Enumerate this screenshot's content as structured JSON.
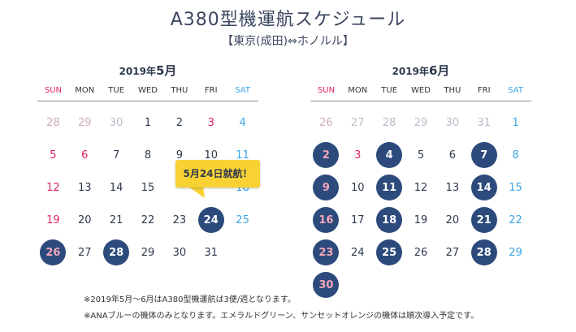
{
  "header": {
    "title": "A380型機運航スケジュール",
    "subtitle": "【東京(成田)⇔ホノルル】"
  },
  "weekdays": [
    "SUN",
    "MON",
    "TUE",
    "WED",
    "THU",
    "FRI",
    "SAT"
  ],
  "calendars": [
    {
      "year_label": "2019年",
      "month_label": "5月",
      "weeks": [
        [
          {
            "d": "28",
            "t": "other"
          },
          {
            "d": "29",
            "t": "other"
          },
          {
            "d": "30",
            "t": "other-wk"
          },
          {
            "d": "1",
            "t": "wk"
          },
          {
            "d": "2",
            "t": "wk"
          },
          {
            "d": "3",
            "t": "hol"
          },
          {
            "d": "4",
            "t": "sat"
          }
        ],
        [
          {
            "d": "5",
            "t": "sun"
          },
          {
            "d": "6",
            "t": "hol"
          },
          {
            "d": "7",
            "t": "wk"
          },
          {
            "d": "8",
            "t": "wk"
          },
          {
            "d": "9",
            "t": "wk"
          },
          {
            "d": "10",
            "t": "wk"
          },
          {
            "d": "11",
            "t": "sat"
          }
        ],
        [
          {
            "d": "12",
            "t": "sun"
          },
          {
            "d": "13",
            "t": "wk"
          },
          {
            "d": "14",
            "t": "wk"
          },
          {
            "d": "15",
            "t": "wk"
          },
          {
            "d": "",
            "t": "wk"
          },
          {
            "d": "",
            "t": "wk"
          },
          {
            "d": "18",
            "t": "sat"
          }
        ],
        [
          {
            "d": "19",
            "t": "sun"
          },
          {
            "d": "20",
            "t": "wk"
          },
          {
            "d": "21",
            "t": "wk"
          },
          {
            "d": "22",
            "t": "wk"
          },
          {
            "d": "23",
            "t": "wk"
          },
          {
            "d": "24",
            "t": "flight"
          },
          {
            "d": "25",
            "t": "sat"
          }
        ],
        [
          {
            "d": "26",
            "t": "flight-sun"
          },
          {
            "d": "27",
            "t": "wk"
          },
          {
            "d": "28",
            "t": "flight"
          },
          {
            "d": "29",
            "t": "wk"
          },
          {
            "d": "30",
            "t": "wk"
          },
          {
            "d": "31",
            "t": "wk"
          },
          {
            "d": "",
            "t": "wk"
          }
        ]
      ]
    },
    {
      "year_label": "2019年",
      "month_label": "6月",
      "weeks": [
        [
          {
            "d": "26",
            "t": "other"
          },
          {
            "d": "27",
            "t": "other-wk"
          },
          {
            "d": "28",
            "t": "other-wk"
          },
          {
            "d": "29",
            "t": "other-wk"
          },
          {
            "d": "30",
            "t": "other-wk"
          },
          {
            "d": "31",
            "t": "other-wk"
          },
          {
            "d": "1",
            "t": "sat"
          }
        ],
        [
          {
            "d": "2",
            "t": "flight-sun"
          },
          {
            "d": "3",
            "t": "hol"
          },
          {
            "d": "4",
            "t": "flight"
          },
          {
            "d": "5",
            "t": "wk"
          },
          {
            "d": "6",
            "t": "wk"
          },
          {
            "d": "7",
            "t": "flight"
          },
          {
            "d": "8",
            "t": "sat"
          }
        ],
        [
          {
            "d": "9",
            "t": "flight-sun"
          },
          {
            "d": "10",
            "t": "wk"
          },
          {
            "d": "11",
            "t": "flight"
          },
          {
            "d": "12",
            "t": "wk"
          },
          {
            "d": "13",
            "t": "wk"
          },
          {
            "d": "14",
            "t": "flight"
          },
          {
            "d": "15",
            "t": "sat"
          }
        ],
        [
          {
            "d": "16",
            "t": "flight-sun"
          },
          {
            "d": "17",
            "t": "wk"
          },
          {
            "d": "18",
            "t": "flight"
          },
          {
            "d": "19",
            "t": "wk"
          },
          {
            "d": "20",
            "t": "wk"
          },
          {
            "d": "21",
            "t": "flight"
          },
          {
            "d": "22",
            "t": "sat"
          }
        ],
        [
          {
            "d": "23",
            "t": "flight-sun"
          },
          {
            "d": "24",
            "t": "wk"
          },
          {
            "d": "25",
            "t": "flight"
          },
          {
            "d": "26",
            "t": "wk"
          },
          {
            "d": "27",
            "t": "wk"
          },
          {
            "d": "28",
            "t": "flight"
          },
          {
            "d": "29",
            "t": "sat"
          }
        ],
        [
          {
            "d": "30",
            "t": "flight-sun"
          },
          {
            "d": "",
            "t": "wk"
          },
          {
            "d": "",
            "t": "wk"
          },
          {
            "d": "",
            "t": "wk"
          },
          {
            "d": "",
            "t": "wk"
          },
          {
            "d": "",
            "t": "wk"
          },
          {
            "d": "",
            "t": "wk"
          }
        ]
      ]
    }
  ],
  "callout": "5月24日就航！",
  "notes": [
    "※2019年5月～6月はA380型機運航は3便/週となります。",
    "※ANAブルーの機体のみとなります。エメラルドグリーン、サンセットオレンジの機体は順次導入予定です。"
  ],
  "colors": {
    "flight_day": "#2c4a7c",
    "sunday": "#e0245e",
    "saturday": "#3ba6e6",
    "callout": "#f8d233"
  }
}
